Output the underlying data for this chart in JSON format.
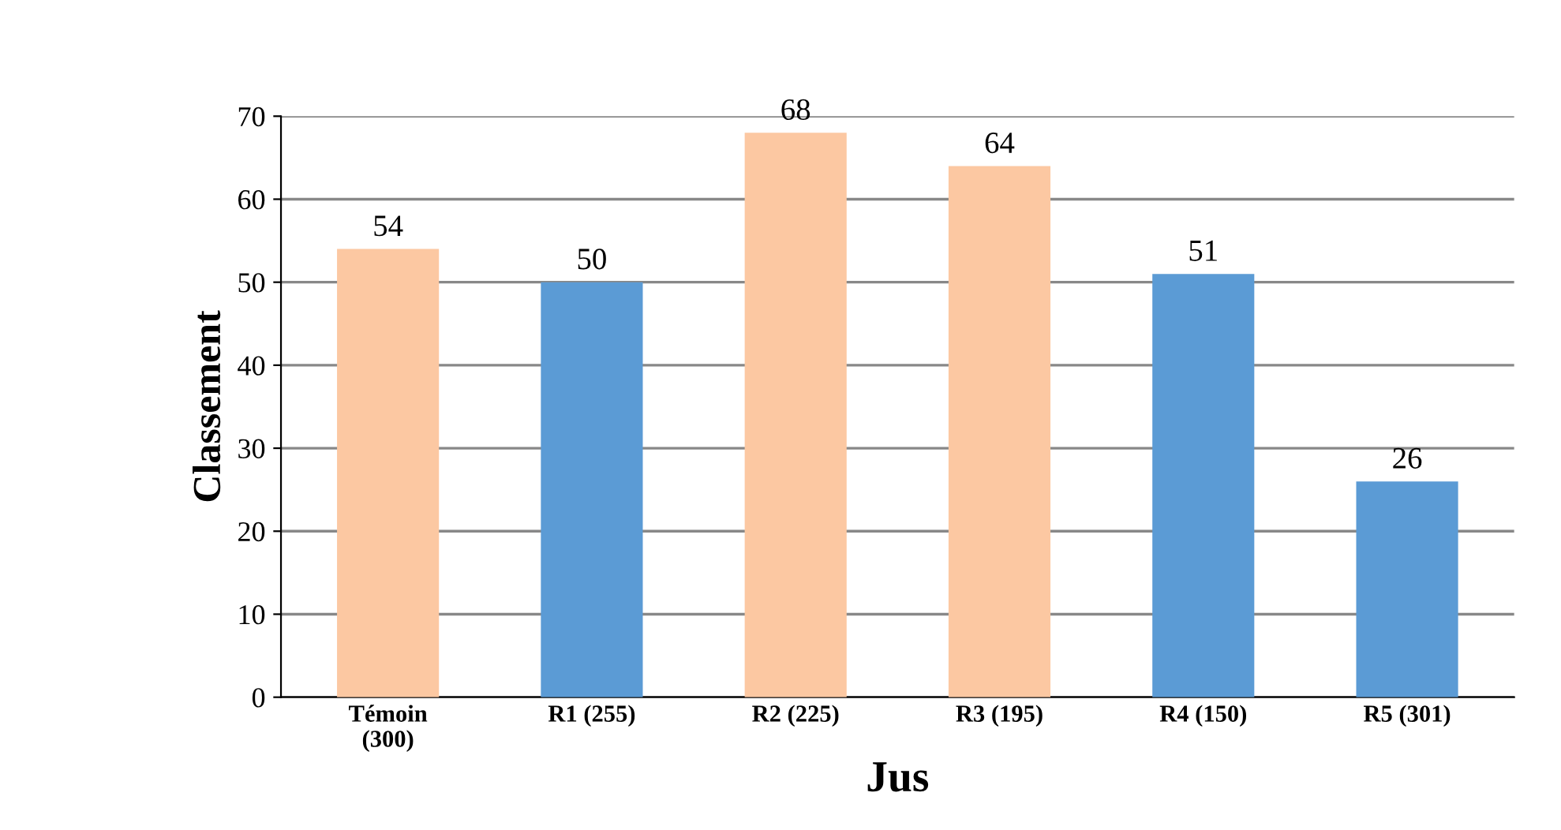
{
  "chart_data": {
    "type": "bar",
    "xlabel": "Jus",
    "ylabel": "Classement",
    "categories": [
      "Témoin\n(300)",
      "R1 (255)",
      "R2 (225)",
      "R3 (195)",
      "R4 (150)",
      "R5 (301)"
    ],
    "values": [
      54,
      50,
      68,
      64,
      51,
      26
    ],
    "colors": [
      "#fcc8a2",
      "#5b9bd5",
      "#fcc8a2",
      "#fcc8a2",
      "#5b9bd5",
      "#5b9bd5"
    ],
    "ylim": [
      0,
      70
    ],
    "yticks": [
      0,
      10,
      20,
      30,
      40,
      50,
      60,
      70
    ],
    "grid": "y",
    "data_labels": true
  }
}
